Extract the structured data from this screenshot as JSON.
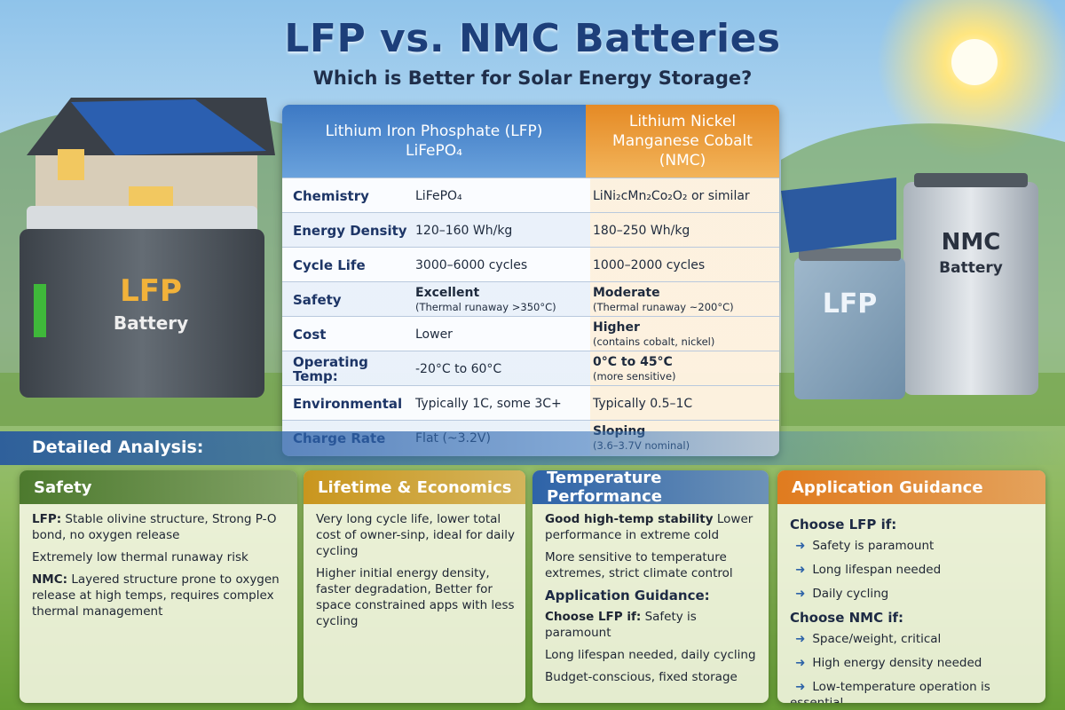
{
  "title": "LFP vs. NMC Batteries",
  "subtitle": "Which is Better for Solar Energy Storage?",
  "illustration": {
    "left_battery": [
      "LFP",
      "Battery"
    ],
    "right_battery_nmc": [
      "NMC",
      "Battery"
    ],
    "right_battery_lfp": "LFP"
  },
  "table": {
    "lfp_header": [
      "Lithium Iron Phosphate (LFP)",
      "LiFePO₄"
    ],
    "nmc_header": [
      "Lithium Nickel",
      "Manganese Cobalt",
      "(NMC)"
    ],
    "rows": [
      {
        "label": "Chemistry",
        "lfp": "LiFePO₄",
        "nmc": "LiNi₂cMn₂Co₂O₂ or similar"
      },
      {
        "label": "Energy Density",
        "lfp": "120–160 Wh/kg",
        "nmc": "180–250 Wh/kg"
      },
      {
        "label": "Cycle Life",
        "lfp": "3000–6000 cycles",
        "nmc": "1000–2000 cycles"
      },
      {
        "label": "Safety",
        "lfp": "Excellent",
        "lfp_note": "(Thermal runaway >350°C)",
        "nmc": "Moderate",
        "nmc_note": "(Thermal runaway ~200°C)"
      },
      {
        "label": "Cost",
        "lfp": "Lower",
        "nmc": "Higher",
        "nmc_note": "(contains cobalt, nickel)"
      },
      {
        "label": "Operating Temp:",
        "lfp": "-20°C to 60°C",
        "nmc": "0°C to 45°C",
        "nmc_note": "(more sensitive)"
      },
      {
        "label": "Environmental",
        "lfp": "Typically 1C, some 3C+",
        "nmc": "Typically 0.5–1C"
      },
      {
        "label": "Charge Rate",
        "lfp": "Flat (~3.2V)",
        "nmc": "Sloping",
        "nmc_note": "(3.6–3.7V nominal)"
      }
    ]
  },
  "detailed_analysis": "Detailed Analysis:",
  "cards": [
    {
      "title": "Safety",
      "items": [
        {
          "lead": "LFP:",
          "text": "Stable olivine structure, Strong P-O bond, no oxygen release"
        },
        {
          "text": "Extremely low thermal runaway risk"
        },
        {
          "lead": "NMC:",
          "text": "Layered structure prone to oxygen release at high temps, requires complex thermal management"
        }
      ]
    },
    {
      "title": "Lifetime & Economics",
      "items": [
        {
          "text": "Very long cycle life, lower total cost of owner-sinp, ideal for daily cycling"
        },
        {
          "text": "Higher initial energy density, faster degradation, Better for space constrained apps with less cycling"
        }
      ]
    },
    {
      "title": "Temperature Performance",
      "items": [
        {
          "lead": "Good high-temp stability",
          "text": "Lower performance in extreme cold"
        },
        {
          "text": "More sensitive to temperature extremes, strict climate control"
        },
        {
          "heading": "Application Guidance:"
        },
        {
          "lead": "Choose LFP if:",
          "text": "Safety is paramount"
        },
        {
          "text": "Long lifespan needed, daily cycling"
        },
        {
          "text": "Budget-conscious, fixed storage"
        }
      ]
    },
    {
      "title": "Application Guidance",
      "items": [
        {
          "heading": "Choose LFP if:"
        },
        {
          "bullet": "Safety is paramount"
        },
        {
          "bullet": "Long lifespan needed"
        },
        {
          "bullet": "Daily cycling"
        },
        {
          "heading": "Choose NMC if:"
        },
        {
          "bullet": "Space/weight, critical"
        },
        {
          "bullet": "High energy density needed"
        },
        {
          "bullet": "Low-temperature operation is essential"
        }
      ]
    }
  ]
}
